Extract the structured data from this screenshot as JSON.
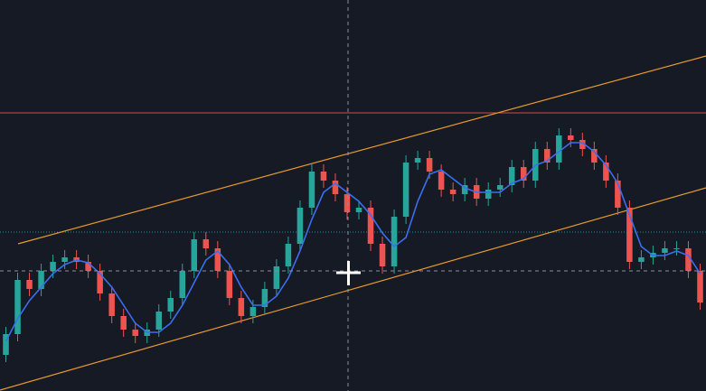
{
  "chart_data": {
    "type": "candlestick",
    "ylim": [
      0,
      433
    ],
    "up_color": "#26a69a",
    "down_color": "#ef5350",
    "open": [
      40,
      63,
      123,
      113,
      133,
      143,
      148,
      143,
      133,
      108,
      83,
      68,
      61,
      68,
      88,
      103,
      133,
      168,
      158,
      133,
      103,
      83,
      93,
      113,
      138,
      163,
      203,
      243,
      233,
      218,
      198,
      203,
      163,
      138,
      193,
      253,
      258,
      243,
      223,
      218,
      228,
      213,
      223,
      228,
      248,
      233,
      268,
      253,
      283,
      278,
      268,
      253,
      233,
      203,
      143,
      148,
      153,
      158,
      158,
      133
    ],
    "high": [
      71,
      131,
      131,
      141,
      151,
      156,
      156,
      151,
      141,
      116,
      91,
      76,
      76,
      96,
      111,
      141,
      176,
      176,
      166,
      141,
      111,
      101,
      121,
      146,
      171,
      211,
      251,
      251,
      241,
      226,
      211,
      211,
      171,
      201,
      261,
      266,
      266,
      251,
      231,
      236,
      236,
      231,
      236,
      256,
      256,
      276,
      276,
      291,
      291,
      286,
      276,
      261,
      241,
      211,
      156,
      161,
      166,
      166,
      166,
      141
    ],
    "low": [
      32,
      55,
      105,
      105,
      125,
      135,
      135,
      125,
      100,
      75,
      60,
      53,
      53,
      60,
      80,
      95,
      125,
      150,
      125,
      95,
      75,
      75,
      85,
      105,
      130,
      155,
      195,
      225,
      210,
      190,
      190,
      155,
      130,
      130,
      185,
      245,
      235,
      215,
      210,
      210,
      205,
      205,
      215,
      220,
      225,
      225,
      245,
      245,
      270,
      260,
      245,
      225,
      195,
      135,
      135,
      140,
      145,
      150,
      125,
      90
    ],
    "close": [
      63,
      123,
      113,
      133,
      143,
      148,
      143,
      133,
      108,
      83,
      68,
      61,
      68,
      88,
      103,
      133,
      168,
      158,
      133,
      103,
      83,
      93,
      113,
      138,
      163,
      203,
      243,
      233,
      218,
      198,
      203,
      163,
      138,
      193,
      253,
      258,
      243,
      223,
      218,
      228,
      213,
      223,
      228,
      248,
      233,
      268,
      253,
      283,
      278,
      268,
      253,
      233,
      203,
      143,
      148,
      153,
      158,
      158,
      133,
      98
    ],
    "ma": {
      "color": "#3a6ff0",
      "values": [
        55,
        80,
        100,
        115,
        130,
        140,
        145,
        142,
        130,
        115,
        95,
        75,
        65,
        65,
        75,
        95,
        120,
        145,
        155,
        140,
        115,
        95,
        95,
        105,
        125,
        155,
        190,
        220,
        230,
        220,
        210,
        195,
        175,
        160,
        170,
        210,
        240,
        245,
        235,
        225,
        220,
        220,
        220,
        230,
        235,
        250,
        255,
        265,
        275,
        275,
        265,
        250,
        230,
        195,
        160,
        150,
        150,
        155,
        150,
        130
      ]
    }
  }
}
